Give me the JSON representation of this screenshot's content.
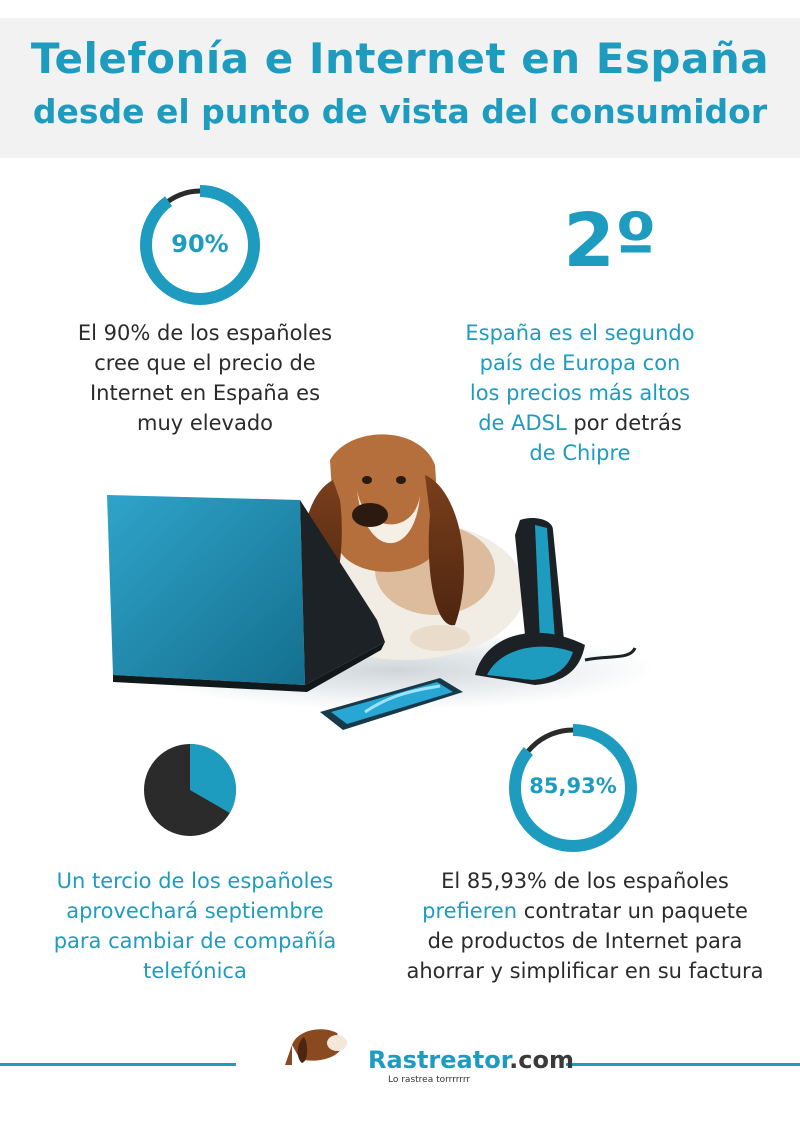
{
  "header": {
    "title": "Telefonía e Internet en España",
    "subtitle": "desde el punto de vista del consumidor"
  },
  "stats": {
    "internet_price": {
      "percent_label": "90%",
      "percent_value": 90,
      "line1": "El 90% de los españoles",
      "line2": "cree que el precio de",
      "line3": "Internet en España es",
      "line4": "muy elevado"
    },
    "adsl_rank": {
      "rank_label": "2º",
      "line1": "España es el segundo",
      "line2": "país de Europa con",
      "line3": "los precios más altos",
      "line4_a": "de ADSL ",
      "line4_b": "por detrás",
      "line5": "de Chipre"
    },
    "switch_provider": {
      "fraction_value": 0.3333,
      "line1": "Un tercio de los españoles",
      "line2": "aprovechará septiembre",
      "line3": "para cambiar de compañía",
      "line4": "telefónica"
    },
    "bundle_preference": {
      "percent_label": "85,93%",
      "percent_value": 85.93,
      "line1": "El 85,93% de los españoles",
      "line2_a": "prefieren",
      "line2_b": " contratar un paquete",
      "line3": "de productos de Internet para",
      "line4": "ahorrar y simplificar en su factura"
    }
  },
  "footer": {
    "brand_main": "Rastreator",
    "brand_suffix": ".com",
    "tagline": "Lo rastrea torrrrrrr"
  },
  "colors": {
    "accent": "#1e9cc0",
    "dark": "#2b2b2b",
    "header_bg": "#f2f2f2"
  }
}
